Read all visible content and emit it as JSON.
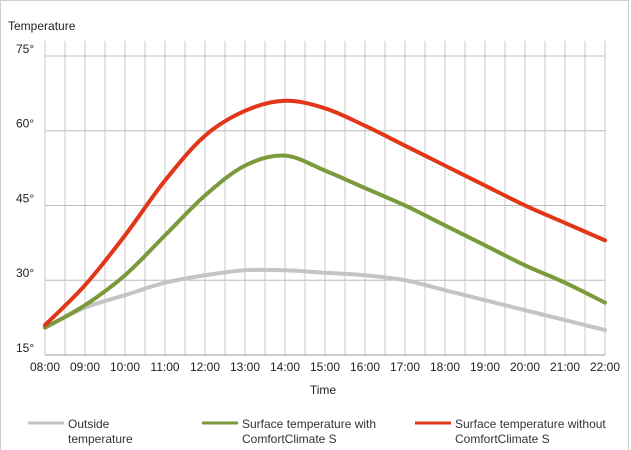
{
  "chart_data": {
    "type": "line",
    "title": "",
    "ylabel": "Temperature",
    "xlabel": "Time",
    "ylim": [
      15,
      78
    ],
    "y_ticks": [
      15,
      30,
      45,
      60,
      75
    ],
    "y_tick_labels": [
      "15°",
      "30°",
      "45°",
      "60°",
      "75°"
    ],
    "x_labels": [
      "08:00",
      "09:00",
      "10:00",
      "11:00",
      "12:00",
      "13:00",
      "14:00",
      "15:00",
      "16:00",
      "17:00",
      "18:00",
      "19:00",
      "20:00",
      "21:00",
      "22:00"
    ],
    "grid": true,
    "legend_position": "bottom",
    "series": [
      {
        "name": "Outside temperature",
        "legend_lines": [
          "Outside",
          "temperature"
        ],
        "color": "#c4c4c4",
        "values": [
          20.5,
          24.5,
          27,
          29.5,
          31,
          32,
          32,
          31.5,
          31,
          30,
          28,
          26,
          24,
          22,
          20
        ]
      },
      {
        "name": "Surface temperature with ComfortClimate S",
        "legend_lines": [
          "Surface temperature with",
          "ComfortClimate S"
        ],
        "color": "#7a9a3c",
        "values": [
          20.5,
          25,
          31,
          39,
          47,
          53,
          55,
          52,
          48.5,
          45,
          41,
          37,
          33,
          29.5,
          25.5
        ]
      },
      {
        "name": "Surface temperature without ComfortClimate S",
        "legend_lines": [
          "Surface temperature without",
          "ComfortClimate S"
        ],
        "color": "#e2361a",
        "values": [
          21,
          29,
          39,
          50,
          59,
          64,
          66,
          64.5,
          61,
          57,
          53,
          49,
          45,
          41.5,
          38
        ]
      }
    ]
  }
}
